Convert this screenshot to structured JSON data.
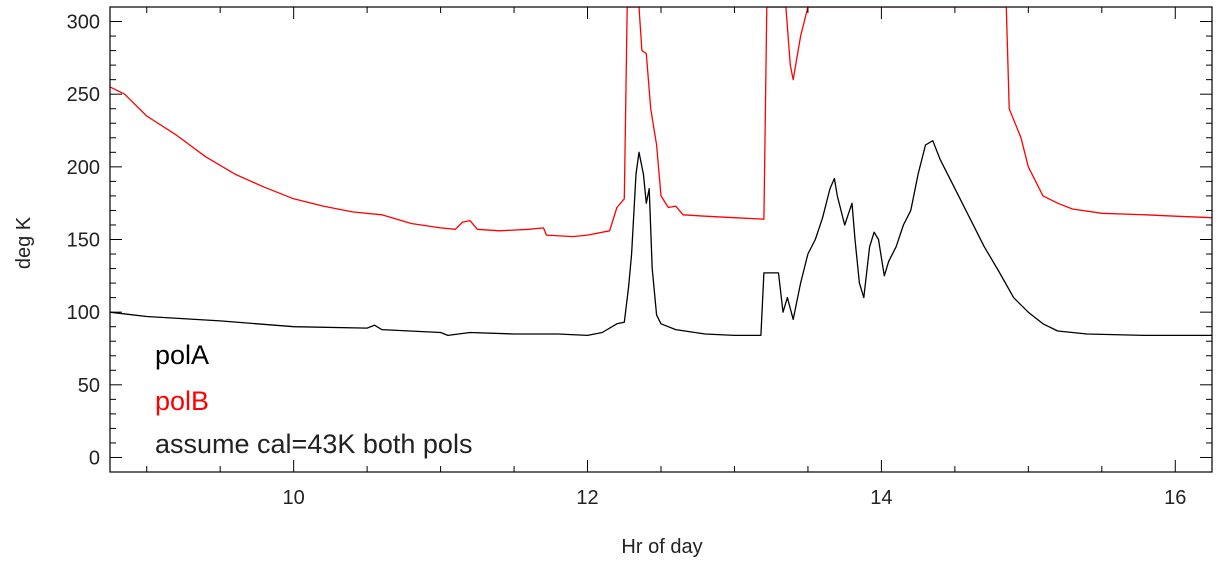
{
  "chart_data": {
    "type": "line",
    "title": "",
    "xlabel": "Hr of day",
    "ylabel": "deg K",
    "xlim": [
      8.75,
      16.25
    ],
    "ylim": [
      -10,
      310
    ],
    "grid": false,
    "x_ticks": [
      10,
      12,
      14,
      16
    ],
    "x_tick_labels": [
      "10",
      "12",
      "14",
      "16"
    ],
    "y_ticks": [
      0,
      50,
      100,
      150,
      200,
      250,
      300
    ],
    "y_tick_labels": [
      "0",
      "50",
      "100",
      "150",
      "200",
      "250",
      "300"
    ],
    "annotations": [
      "polA",
      "polB",
      "assume cal=43K both pols"
    ],
    "series": [
      {
        "name": "polA",
        "color": "#000000",
        "points": [
          [
            8.75,
            100
          ],
          [
            9.0,
            97
          ],
          [
            9.5,
            94
          ],
          [
            10.0,
            90
          ],
          [
            10.5,
            89
          ],
          [
            10.55,
            91
          ],
          [
            10.6,
            88
          ],
          [
            11.0,
            86
          ],
          [
            11.05,
            84
          ],
          [
            11.2,
            86
          ],
          [
            11.5,
            85
          ],
          [
            11.8,
            85
          ],
          [
            12.0,
            84
          ],
          [
            12.1,
            86
          ],
          [
            12.2,
            92
          ],
          [
            12.25,
            93
          ],
          [
            12.28,
            118
          ],
          [
            12.3,
            140
          ],
          [
            12.33,
            195
          ],
          [
            12.35,
            210
          ],
          [
            12.38,
            195
          ],
          [
            12.4,
            175
          ],
          [
            12.42,
            185
          ],
          [
            12.44,
            130
          ],
          [
            12.47,
            98
          ],
          [
            12.5,
            92
          ],
          [
            12.6,
            88
          ],
          [
            12.8,
            85
          ],
          [
            13.0,
            84
          ],
          [
            13.18,
            84
          ],
          [
            13.2,
            127
          ],
          [
            13.3,
            127
          ],
          [
            13.33,
            100
          ],
          [
            13.36,
            110
          ],
          [
            13.4,
            95
          ],
          [
            13.45,
            120
          ],
          [
            13.5,
            140
          ],
          [
            13.55,
            150
          ],
          [
            13.6,
            165
          ],
          [
            13.65,
            185
          ],
          [
            13.68,
            192
          ],
          [
            13.7,
            180
          ],
          [
            13.75,
            160
          ],
          [
            13.8,
            175
          ],
          [
            13.82,
            150
          ],
          [
            13.85,
            120
          ],
          [
            13.88,
            110
          ],
          [
            13.92,
            145
          ],
          [
            13.95,
            155
          ],
          [
            13.98,
            150
          ],
          [
            14.02,
            125
          ],
          [
            14.05,
            135
          ],
          [
            14.1,
            145
          ],
          [
            14.15,
            160
          ],
          [
            14.2,
            170
          ],
          [
            14.25,
            195
          ],
          [
            14.3,
            215
          ],
          [
            14.35,
            218
          ],
          [
            14.4,
            205
          ],
          [
            14.5,
            185
          ],
          [
            14.6,
            165
          ],
          [
            14.7,
            145
          ],
          [
            14.8,
            128
          ],
          [
            14.9,
            110
          ],
          [
            15.0,
            100
          ],
          [
            15.1,
            92
          ],
          [
            15.2,
            87
          ],
          [
            15.4,
            85
          ],
          [
            15.8,
            84
          ],
          [
            16.25,
            84
          ]
        ]
      },
      {
        "name": "polB",
        "color": "#ff0000",
        "points": [
          [
            8.75,
            255
          ],
          [
            8.85,
            250
          ],
          [
            9.0,
            235
          ],
          [
            9.2,
            222
          ],
          [
            9.4,
            207
          ],
          [
            9.6,
            195
          ],
          [
            9.8,
            186
          ],
          [
            10.0,
            178
          ],
          [
            10.2,
            173
          ],
          [
            10.4,
            169
          ],
          [
            10.6,
            167
          ],
          [
            10.8,
            161
          ],
          [
            11.0,
            158
          ],
          [
            11.1,
            157
          ],
          [
            11.15,
            162
          ],
          [
            11.2,
            163
          ],
          [
            11.25,
            157
          ],
          [
            11.4,
            156
          ],
          [
            11.6,
            157
          ],
          [
            11.7,
            158
          ],
          [
            11.72,
            153
          ],
          [
            11.9,
            152
          ],
          [
            12.0,
            153
          ],
          [
            12.15,
            156
          ],
          [
            12.2,
            172
          ],
          [
            12.25,
            178
          ],
          [
            12.27,
            310
          ],
          [
            12.35,
            310
          ],
          [
            12.37,
            280
          ],
          [
            12.4,
            278
          ],
          [
            12.43,
            240
          ],
          [
            12.47,
            215
          ],
          [
            12.5,
            180
          ],
          [
            12.55,
            172
          ],
          [
            12.6,
            173
          ],
          [
            12.65,
            167
          ],
          [
            12.8,
            166
          ],
          [
            13.0,
            165
          ],
          [
            13.2,
            164
          ],
          [
            13.22,
            310
          ],
          [
            13.35,
            310
          ],
          [
            13.38,
            270
          ],
          [
            13.4,
            260
          ],
          [
            13.45,
            290
          ],
          [
            13.5,
            310
          ],
          [
            14.85,
            310
          ],
          [
            14.87,
            240
          ],
          [
            14.95,
            220
          ],
          [
            15.0,
            200
          ],
          [
            15.1,
            180
          ],
          [
            15.2,
            175
          ],
          [
            15.3,
            171
          ],
          [
            15.5,
            168
          ],
          [
            15.8,
            167
          ],
          [
            16.0,
            166
          ],
          [
            16.25,
            165
          ]
        ]
      }
    ]
  }
}
